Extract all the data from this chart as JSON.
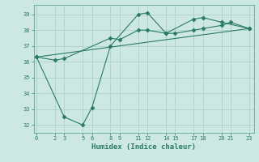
{
  "xlabel": "Humidex (Indice chaleur)",
  "bg_color": "#cce8e0",
  "line_color": "#2a7a68",
  "grid_color": "#a8cfc8",
  "spine_color": "#5aaa90",
  "yticks": [
    32,
    33,
    34,
    35,
    36,
    37,
    38,
    39
  ],
  "xticks": [
    0,
    2,
    3,
    5,
    6,
    8,
    9,
    11,
    12,
    14,
    15,
    17,
    18,
    20,
    21,
    23
  ],
  "xlim": [
    -0.3,
    23.5
  ],
  "ylim": [
    31.5,
    39.6
  ],
  "lines": [
    {
      "x": [
        0,
        2,
        3,
        8,
        9,
        11,
        12,
        14,
        15,
        17,
        18,
        20,
        21,
        23
      ],
      "y": [
        36.3,
        36.1,
        36.2,
        37.5,
        37.4,
        38.0,
        38.0,
        37.8,
        37.8,
        38.0,
        38.1,
        38.3,
        38.5,
        38.1
      ],
      "marker": "D",
      "markersize": 2.5
    },
    {
      "x": [
        0,
        3,
        5,
        6,
        8,
        11,
        12,
        14,
        17,
        18,
        20,
        23
      ],
      "y": [
        36.3,
        32.5,
        32.0,
        33.1,
        37.0,
        39.0,
        39.1,
        37.8,
        38.7,
        38.8,
        38.5,
        38.1
      ],
      "marker": "D",
      "markersize": 2.5
    },
    {
      "x": [
        0,
        23
      ],
      "y": [
        36.3,
        38.1
      ],
      "marker": null,
      "markersize": 0
    }
  ]
}
